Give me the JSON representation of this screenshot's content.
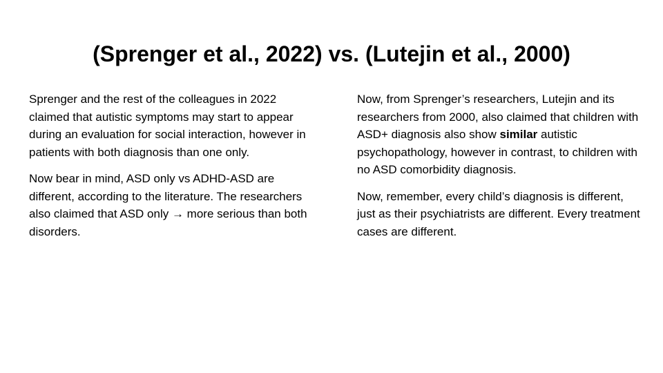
{
  "slide": {
    "title": "(Sprenger et al., 2022) vs. (Lutejin et al., 2000)",
    "left_column": {
      "paragraph_1": "Sprenger and the rest of the colleagues in 2022 claimed that autistic symptoms may start to appear during an evaluation for social interaction, however in patients with both diagnosis than one only.",
      "paragraph_2": "Now bear in mind, ASD only vs ADHD-ASD are different, according to the literature. The researchers also claimed that ASD only → more serious than both disorders."
    },
    "right_column": {
      "paragraph_1_before": "Now, from Sprenger’s researchers, Lutejin and its researchers from 2000, also claimed that children with ASD+ diagnosis also show ",
      "paragraph_1_bold": "similar",
      "paragraph_1_after": " autistic psychopathology, however in contrast, to children with no ASD comorbidity diagnosis.",
      "paragraph_2": "Now, remember, every child’s diagnosis is different, just as their psychiatrists are different. Every treatment cases are different."
    }
  }
}
